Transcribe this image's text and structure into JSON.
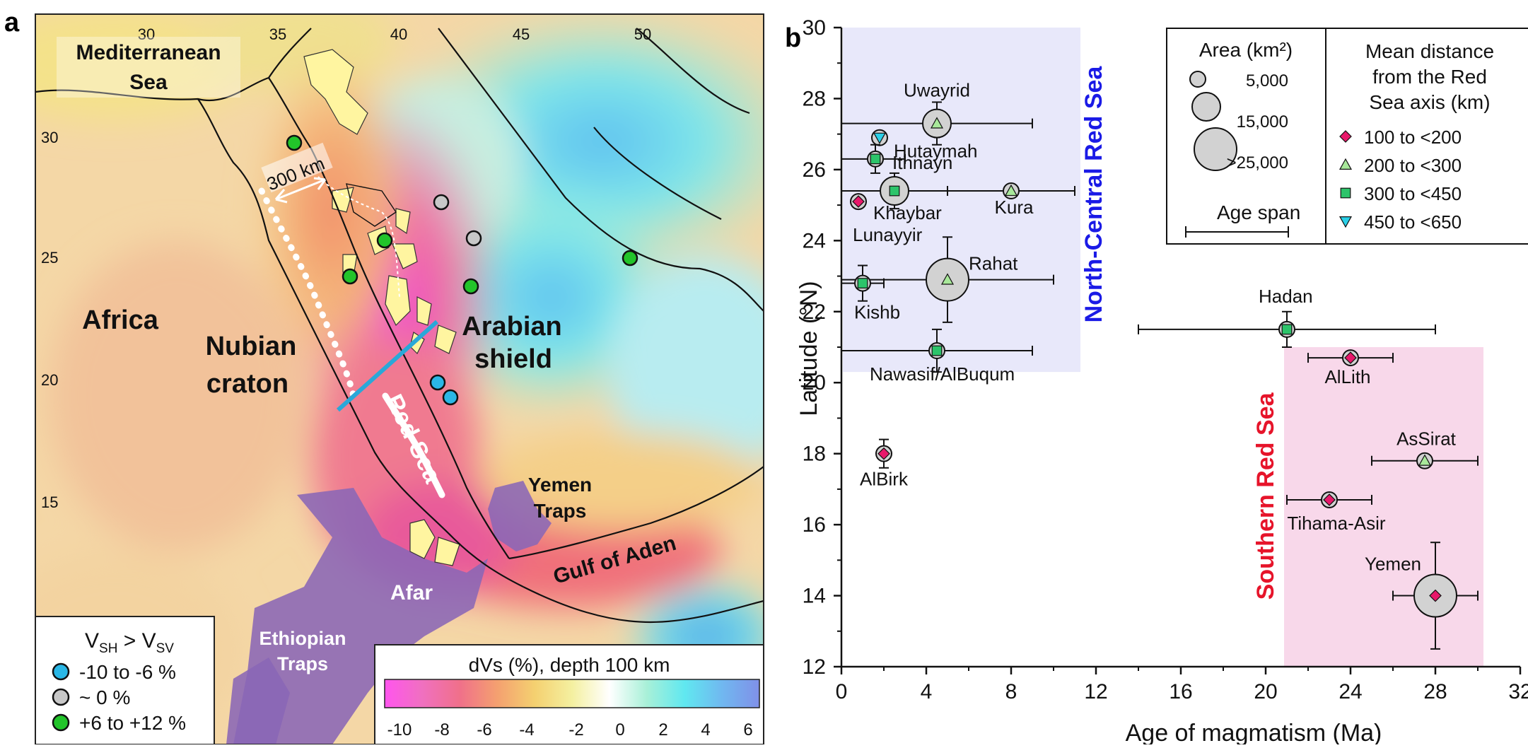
{
  "map": {
    "panel_letter": "a",
    "lon_ticks": [
      "30",
      "35",
      "40",
      "45",
      "50"
    ],
    "lat_ticks": [
      "30",
      "25",
      "20",
      "15"
    ],
    "labels": {
      "mediterranean_1": "Mediterranean",
      "mediterranean_2": "Sea",
      "africa": "Africa",
      "nubian_1": "Nubian",
      "nubian_2": "craton",
      "arabian_1": "Arabian",
      "arabian_2": "shield",
      "red_sea": "Red Sea",
      "yemen_1": "Yemen",
      "yemen_2": "Traps",
      "gulf_of_aden": "Gulf of Aden",
      "afar": "Afar",
      "ethiopian_1": "Ethiopian",
      "ethiopian_2": "Traps",
      "scale": "300 km"
    },
    "anisotropy_legend": {
      "title_main": "V",
      "sub_sh": "SH",
      "op": " > V",
      "sub_sv": "SV",
      "items": [
        {
          "label": "-10 to -6 %",
          "color": "#2ab7e6"
        },
        {
          "label": "~ 0 %",
          "color": "#c8c8c8"
        },
        {
          "label": "+6 to +12 %",
          "color": "#22c42a"
        }
      ]
    },
    "colorbar": {
      "title": "dVs (%), depth 100 km",
      "ticks": [
        "-10",
        "-8",
        "-6",
        "-4",
        "-2",
        "0",
        "2",
        "4",
        "6"
      ],
      "colors": [
        "#ff55ee",
        "#f070c0",
        "#f0708a",
        "#f4a070",
        "#f4d070",
        "#f4f0a0",
        "#ffffff",
        "#a8f0d8",
        "#60e8f0",
        "#70b8f0",
        "#8090e8"
      ]
    }
  },
  "chart_data": {
    "type": "scatter",
    "panel_letter": "b",
    "xlabel": "Age of magmatism (Ma)",
    "ylabel": "Latitude (°N)",
    "xlim": [
      0,
      32
    ],
    "ylim": [
      12,
      30
    ],
    "xticks": [
      "0",
      "4",
      "8",
      "12",
      "16",
      "20",
      "24",
      "28",
      "32"
    ],
    "yticks": [
      "12",
      "14",
      "16",
      "18",
      "20",
      "22",
      "24",
      "26",
      "28",
      "30"
    ],
    "regions": [
      {
        "label": "North-Central Red Sea",
        "color": "#1a1ae6",
        "fill": "#e8e8fa",
        "x": [
          0,
          11.2
        ],
        "y": [
          20.3,
          30
        ]
      },
      {
        "label": "Southern Red Sea",
        "color": "#e6142a",
        "fill": "#f8d8ea",
        "x": [
          20.8,
          30.2
        ],
        "y": [
          12,
          21
        ]
      }
    ],
    "categories": [
      "100 to <200",
      "200 to <300",
      "300 to <450",
      "450 to <650"
    ],
    "points": [
      {
        "name": "Uwayrid",
        "x": 4.5,
        "y": 27.3,
        "xmin": 0,
        "xmax": 9,
        "ymin": 26.7,
        "ymax": 27.9,
        "cat": "200 to <300",
        "area": 15000
      },
      {
        "name": "Hutaymah",
        "x": 1.8,
        "y": 26.9,
        "cat": "450 to <650",
        "area": 5000
      },
      {
        "name": "Ithnayn",
        "x": 1.6,
        "y": 26.3,
        "xmin": 0,
        "xmax": 3,
        "ymin": 25.9,
        "ymax": 26.7,
        "cat": "300 to <450",
        "area": 5000
      },
      {
        "name": "Khaybar",
        "x": 2.5,
        "y": 25.4,
        "xmin": 0,
        "xmax": 5,
        "ymin": 24.9,
        "ymax": 25.9,
        "cat": "300 to <450",
        "area": 15000
      },
      {
        "name": "Kura",
        "x": 8,
        "y": 25.4,
        "xmin": 5,
        "xmax": 11,
        "cat": "200 to <300",
        "area": 5000
      },
      {
        "name": "Lunayyir",
        "x": 0.8,
        "y": 25.1,
        "cat": "100 to <200",
        "area": 5000
      },
      {
        "name": "Rahat",
        "x": 5,
        "y": 22.9,
        "xmin": 0,
        "xmax": 10,
        "ymin": 21.7,
        "ymax": 24.1,
        "cat": "200 to <300",
        "area": 25000
      },
      {
        "name": "Kishb",
        "x": 1,
        "y": 22.8,
        "xmin": 0,
        "xmax": 2,
        "ymin": 22.3,
        "ymax": 23.3,
        "cat": "300 to <450",
        "area": 5000
      },
      {
        "name": "Nawasif/AlBuqum",
        "x": 4.5,
        "y": 20.9,
        "xmin": 0,
        "xmax": 9,
        "ymin": 20.3,
        "ymax": 21.5,
        "cat": "300 to <450",
        "area": 5000
      },
      {
        "name": "Hadan",
        "x": 21,
        "y": 21.5,
        "xmin": 14,
        "xmax": 28,
        "ymin": 21,
        "ymax": 22,
        "cat": "300 to <450",
        "area": 5000
      },
      {
        "name": "AlLith",
        "x": 24,
        "y": 20.7,
        "xmin": 22,
        "xmax": 26,
        "cat": "100 to <200",
        "area": 5000
      },
      {
        "name": "AlBirk",
        "x": 2,
        "y": 18,
        "ymin": 17.6,
        "ymax": 18.4,
        "cat": "100 to <200",
        "area": 5000
      },
      {
        "name": "AsSirat",
        "x": 27.5,
        "y": 17.8,
        "xmin": 25,
        "xmax": 30,
        "cat": "200 to <300",
        "area": 5000
      },
      {
        "name": "Tihama-Asir",
        "x": 23,
        "y": 16.7,
        "xmin": 21,
        "xmax": 25,
        "cat": "100 to <200",
        "area": 5000
      },
      {
        "name": "Yemen",
        "x": 28,
        "y": 14,
        "xmin": 26,
        "xmax": 30,
        "ymin": 12.5,
        "ymax": 15.5,
        "cat": "100 to <200",
        "area": 25000
      }
    ],
    "legend_area": {
      "title": "Area (km²)",
      "items": [
        {
          "label": "5,000",
          "value": 5000
        },
        {
          "label": "15,000",
          "value": 15000
        },
        {
          "label": ">25,000",
          "value": 25000
        }
      ],
      "age_span": "Age span"
    },
    "legend_distance": {
      "title": [
        "Mean distance",
        "from the Red",
        "Sea axis (km)"
      ],
      "items": [
        {
          "label": "100 to <200",
          "symbol": "diamond",
          "color": "#e8186a"
        },
        {
          "label": "200 to <300",
          "symbol": "triangle",
          "color": "#a8e89a"
        },
        {
          "label": "300 to <450",
          "symbol": "square",
          "color": "#2cc46a"
        },
        {
          "label": "450 to <650",
          "symbol": "triangle-down",
          "color": "#2ad0e8"
        }
      ]
    }
  }
}
